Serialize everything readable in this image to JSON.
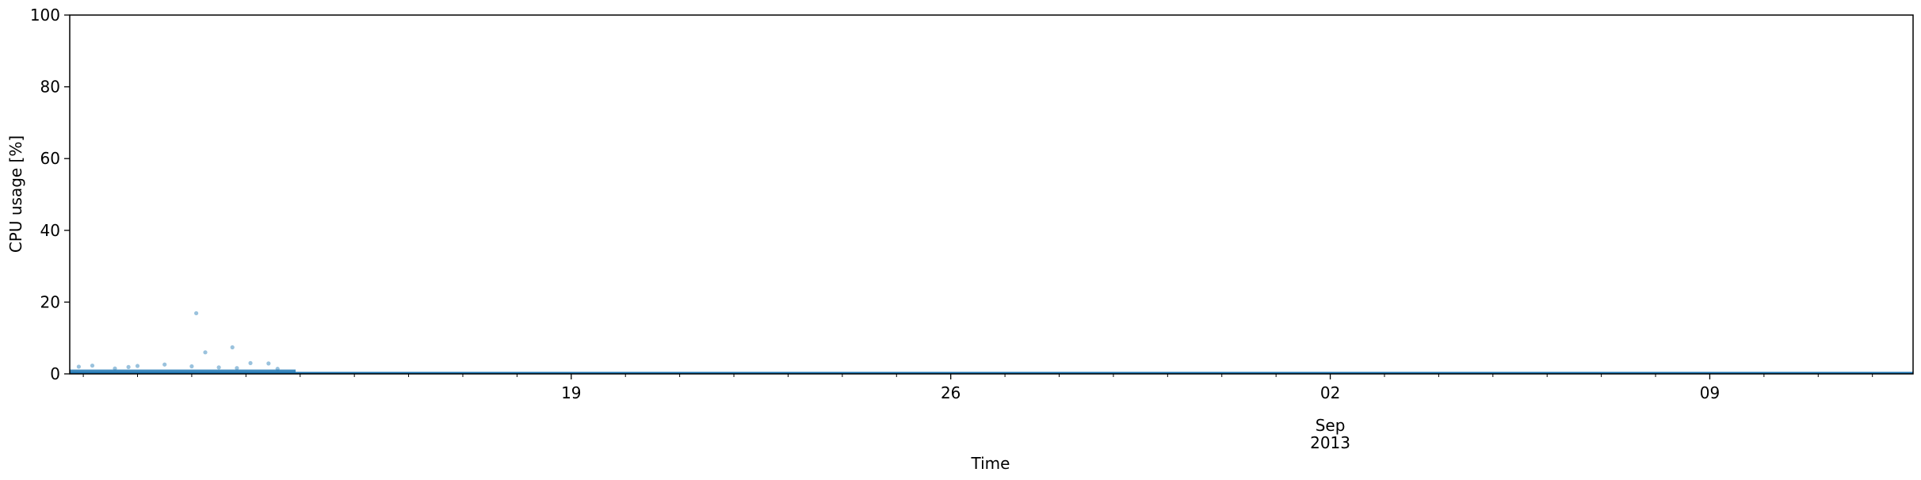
{
  "chart_data": {
    "type": "scatter",
    "title": "",
    "xlabel": "Time",
    "ylabel": "CPU usage [%]",
    "xlim": [
      "2013-08-09T18:00",
      "2013-09-12T18:00"
    ],
    "ylim": [
      0,
      100
    ],
    "y_ticks": [
      "0",
      "20",
      "40",
      "60",
      "80",
      "100"
    ],
    "x_major_ticks": [
      {
        "date": "2013-08-19",
        "label": "19"
      },
      {
        "date": "2013-08-26",
        "label": "26"
      },
      {
        "date": "2013-09-02",
        "label": "02"
      },
      {
        "date": "2013-09-09",
        "label": "09"
      }
    ],
    "x_secondary_label": {
      "date": "2013-09-02",
      "month": "Sep",
      "year": "2013"
    },
    "grid": false,
    "legend": "none",
    "series_color": "#1f77b4",
    "baseline": {
      "from": "2013-08-09T18:00",
      "to": "2013-09-12T18:00",
      "y": 0
    },
    "dense_band": {
      "from": "2013-08-09T18:00",
      "to": "2013-08-13T22:00",
      "y_min": 0,
      "y_max": 1.2
    },
    "points": [
      {
        "x": "2013-08-09T22:00",
        "y": 2.0
      },
      {
        "x": "2013-08-10T04:00",
        "y": 2.3
      },
      {
        "x": "2013-08-10T14:00",
        "y": 1.5
      },
      {
        "x": "2013-08-10T20:00",
        "y": 1.9
      },
      {
        "x": "2013-08-11T00:00",
        "y": 2.2
      },
      {
        "x": "2013-08-11T12:00",
        "y": 2.6
      },
      {
        "x": "2013-08-12T00:00",
        "y": 2.1
      },
      {
        "x": "2013-08-12T02:00",
        "y": 16.9
      },
      {
        "x": "2013-08-12T06:00",
        "y": 6.0
      },
      {
        "x": "2013-08-12T12:00",
        "y": 1.8
      },
      {
        "x": "2013-08-12T18:00",
        "y": 7.4
      },
      {
        "x": "2013-08-12T20:00",
        "y": 1.6
      },
      {
        "x": "2013-08-13T02:00",
        "y": 3.0
      },
      {
        "x": "2013-08-13T10:00",
        "y": 2.9
      },
      {
        "x": "2013-08-13T14:00",
        "y": 1.4
      }
    ]
  }
}
